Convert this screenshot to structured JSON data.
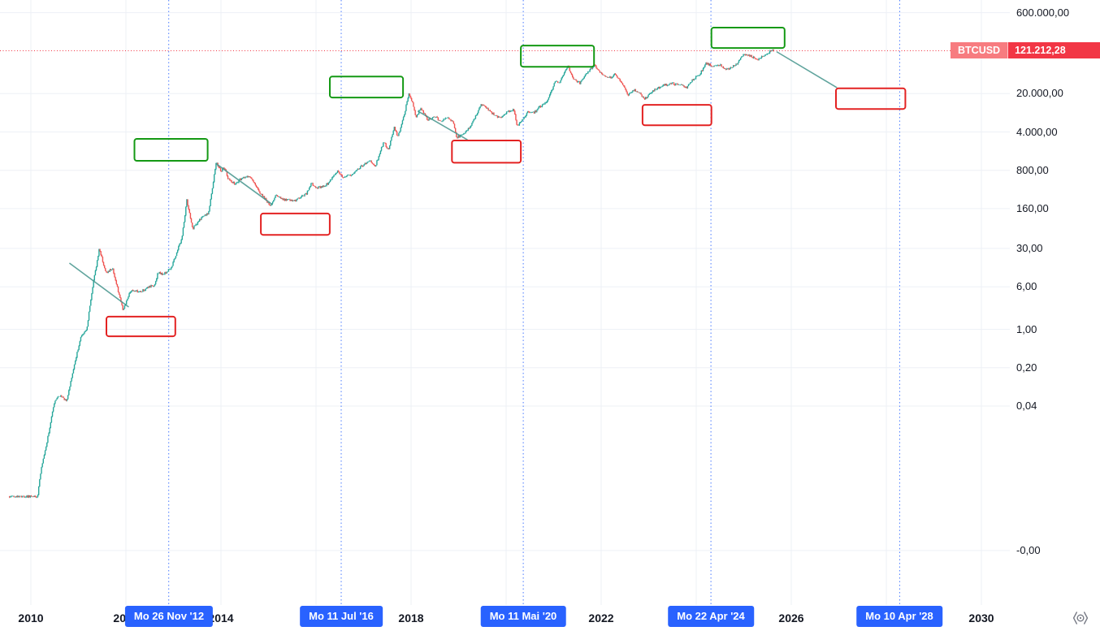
{
  "symbol": {
    "name": "BTCUSD",
    "last_price_text": "121.212,28",
    "last_price": 121212.28
  },
  "colors": {
    "background": "#ffffff",
    "up": "#26a69a",
    "down": "#ef5350",
    "halving_blue": "#2962ff",
    "price_line_red": "#f23645",
    "badge_symbol_bg": "#f77c80",
    "badge_price_bg": "#f23645",
    "box_green": "#149914",
    "box_red": "#e32222",
    "trend_teal": "#45958d",
    "grid": "#edf0f6",
    "text_dark": "#131722",
    "icon_gray": "#787b86"
  },
  "y_axis": {
    "labels": [
      {
        "text": "600.000,00",
        "value": 600000
      },
      {
        "text": "20.000,00",
        "value": 20000
      },
      {
        "text": "4.000,00",
        "value": 4000
      },
      {
        "text": "800,00",
        "value": 800
      },
      {
        "text": "160,00",
        "value": 160
      },
      {
        "text": "30,00",
        "value": 30
      },
      {
        "text": "6,00",
        "value": 6
      },
      {
        "text": "1,00",
        "value": 1
      },
      {
        "text": "0,20",
        "value": 0.2
      },
      {
        "text": "0,04",
        "value": 0.04
      },
      {
        "text": "-0,00",
        "value": 9.25e-05
      }
    ]
  },
  "x_axis": {
    "year_labels": [
      {
        "text": "2010",
        "year": 2010
      },
      {
        "text": "2012",
        "year": 2012
      },
      {
        "text": "2014",
        "year": 2014
      },
      {
        "text": "2016",
        "year": 2016
      },
      {
        "text": "2018",
        "year": 2018
      },
      {
        "text": "2020",
        "year": 2020
      },
      {
        "text": "2022",
        "year": 2022
      },
      {
        "text": "2024",
        "year": 2024
      },
      {
        "text": "2026",
        "year": 2026
      },
      {
        "text": "2028",
        "year": 2028
      },
      {
        "text": "2030",
        "year": 2030
      }
    ],
    "halvings": [
      {
        "text": "Mo 26 Nov '12",
        "year": 2012.9
      },
      {
        "text": "Mo 11 Jul '16",
        "year": 2016.53
      },
      {
        "text": "Mo 11 Mai '20",
        "year": 2020.36
      },
      {
        "text": "Mo 22 Apr '24",
        "year": 2024.31
      },
      {
        "text": "Mo 10 Apr '28",
        "year": 2028.28
      }
    ]
  },
  "icons": {
    "corner": "scale-settings-icon"
  },
  "chart_data": {
    "type": "candlestick",
    "symbol": "BTCUSD",
    "scale_y": "log",
    "x_unit": "year",
    "x_range_visible": [
      2009.35,
      2029.35
    ],
    "series_span": [
      2009.55,
      2025.63
    ],
    "last_price": 121212.28,
    "series_anchors": [
      [
        2009.55,
        0.0009
      ],
      [
        2010.14,
        0.0009
      ],
      [
        2010.22,
        0.003
      ],
      [
        2010.35,
        0.01
      ],
      [
        2010.5,
        0.05
      ],
      [
        2010.62,
        0.062
      ],
      [
        2010.75,
        0.05
      ],
      [
        2010.9,
        0.2
      ],
      [
        2011.05,
        0.72
      ],
      [
        2011.17,
        0.95
      ],
      [
        2011.3,
        6
      ],
      [
        2011.44,
        30
      ],
      [
        2011.58,
        10.5
      ],
      [
        2011.72,
        13
      ],
      [
        2011.94,
        2.2
      ],
      [
        2012.1,
        5.1
      ],
      [
        2012.32,
        4.9
      ],
      [
        2012.6,
        6.6
      ],
      [
        2012.68,
        11
      ],
      [
        2012.78,
        10
      ],
      [
        2012.95,
        13.3
      ],
      [
        2013.18,
        47
      ],
      [
        2013.28,
        228
      ],
      [
        2013.4,
        68
      ],
      [
        2013.55,
        100
      ],
      [
        2013.74,
        135
      ],
      [
        2013.9,
        1130
      ],
      [
        2014.0,
        760
      ],
      [
        2014.06,
        940
      ],
      [
        2014.16,
        540
      ],
      [
        2014.3,
        450
      ],
      [
        2014.45,
        590
      ],
      [
        2014.6,
        630
      ],
      [
        2014.78,
        350
      ],
      [
        2015.04,
        178
      ],
      [
        2015.16,
        280
      ],
      [
        2015.3,
        235
      ],
      [
        2015.56,
        222
      ],
      [
        2015.8,
        305
      ],
      [
        2015.9,
        455
      ],
      [
        2016.0,
        378
      ],
      [
        2016.2,
        418
      ],
      [
        2016.45,
        760
      ],
      [
        2016.56,
        610
      ],
      [
        2016.75,
        640
      ],
      [
        2016.95,
        955
      ],
      [
        2017.15,
        1180
      ],
      [
        2017.25,
        965
      ],
      [
        2017.42,
        2600
      ],
      [
        2017.53,
        1900
      ],
      [
        2017.64,
        4900
      ],
      [
        2017.72,
        3250
      ],
      [
        2017.85,
        7900
      ],
      [
        2017.95,
        19350
      ],
      [
        2018.04,
        13500
      ],
      [
        2018.1,
        6900
      ],
      [
        2018.2,
        11300
      ],
      [
        2018.35,
        6500
      ],
      [
        2018.5,
        7600
      ],
      [
        2018.62,
        6300
      ],
      [
        2018.75,
        7300
      ],
      [
        2018.88,
        6300
      ],
      [
        2018.96,
        3200
      ],
      [
        2019.1,
        3550
      ],
      [
        2019.26,
        5200
      ],
      [
        2019.48,
        12900
      ],
      [
        2019.65,
        9500
      ],
      [
        2019.86,
        7150
      ],
      [
        2020.05,
        9500
      ],
      [
        2020.16,
        10300
      ],
      [
        2020.23,
        4950
      ],
      [
        2020.45,
        9200
      ],
      [
        2020.6,
        9150
      ],
      [
        2020.72,
        11800
      ],
      [
        2020.85,
        13600
      ],
      [
        2020.96,
        23000
      ],
      [
        2021.04,
        34000
      ],
      [
        2021.12,
        31500
      ],
      [
        2021.3,
        63000
      ],
      [
        2021.42,
        36000
      ],
      [
        2021.56,
        31500
      ],
      [
        2021.7,
        47500
      ],
      [
        2021.86,
        67500
      ],
      [
        2022.0,
        46500
      ],
      [
        2022.2,
        38800
      ],
      [
        2022.3,
        45300
      ],
      [
        2022.46,
        29700
      ],
      [
        2022.56,
        19100
      ],
      [
        2022.7,
        23400
      ],
      [
        2022.84,
        19400
      ],
      [
        2022.92,
        15900
      ],
      [
        2023.05,
        21000
      ],
      [
        2023.16,
        24600
      ],
      [
        2023.3,
        28100
      ],
      [
        2023.5,
        30400
      ],
      [
        2023.66,
        29100
      ],
      [
        2023.8,
        25900
      ],
      [
        2023.95,
        37400
      ],
      [
        2024.06,
        43200
      ],
      [
        2024.21,
        72800
      ],
      [
        2024.36,
        61000
      ],
      [
        2024.5,
        66800
      ],
      [
        2024.64,
        54300
      ],
      [
        2024.78,
        63800
      ],
      [
        2024.86,
        69200
      ],
      [
        2024.96,
        98800
      ],
      [
        2025.05,
        104300
      ],
      [
        2025.16,
        96700
      ],
      [
        2025.28,
        81800
      ],
      [
        2025.42,
        97300
      ],
      [
        2025.5,
        110900
      ],
      [
        2025.6,
        121212
      ]
    ],
    "trendlines": [
      {
        "from": [
          2010.82,
          16
        ],
        "to": [
          2012.05,
          2.6
        ]
      },
      {
        "from": [
          2013.9,
          1050
        ],
        "to": [
          2015.08,
          190
        ]
      },
      {
        "from": [
          2018.15,
          9500
        ],
        "to": [
          2019.18,
          2900
        ]
      },
      {
        "from": [
          2025.7,
          115000
        ],
        "to": [
          2026.95,
          26000
        ]
      }
    ],
    "green_boxes": [
      {
        "years": [
          2012.18,
          2013.72
        ],
        "prices": [
          1190,
          2990
        ]
      },
      {
        "years": [
          2016.29,
          2017.83
        ],
        "prices": [
          17000,
          41000
        ]
      },
      {
        "years": [
          2020.31,
          2021.85
        ],
        "prices": [
          62000,
          151000
        ]
      },
      {
        "years": [
          2024.32,
          2025.86
        ],
        "prices": [
          136000,
          320000
        ]
      }
    ],
    "red_boxes": [
      {
        "years": [
          2011.59,
          2013.04
        ],
        "prices": [
          0.75,
          1.71
        ]
      },
      {
        "years": [
          2014.84,
          2016.29
        ],
        "prices": [
          53,
          130
        ]
      },
      {
        "years": [
          2018.86,
          2020.31
        ],
        "prices": [
          1100,
          2800
        ]
      },
      {
        "years": [
          2022.87,
          2024.32
        ],
        "prices": [
          5300,
          12500
        ]
      },
      {
        "years": [
          2026.94,
          2028.4
        ],
        "prices": [
          10500,
          25000
        ]
      }
    ]
  }
}
